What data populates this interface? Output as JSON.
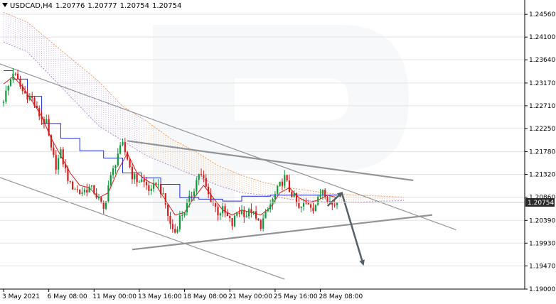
{
  "header": {
    "symbol": "USDCAD,H4",
    "open": "1.20776",
    "high": "1.20777",
    "low": "1.20754",
    "close": "1.20754"
  },
  "chart_data": {
    "type": "candlestick",
    "symbol": "USDCAD",
    "timeframe": "H4",
    "ylim": [
      1.19,
      1.2485
    ],
    "y_ticks": [
      "1.24560",
      "1.24100",
      "1.23640",
      "1.23170",
      "1.22710",
      "1.22250",
      "1.21780",
      "1.21320",
      "1.20860",
      "1.20390",
      "1.19930",
      "1.19470",
      "1.19000"
    ],
    "x_ticks": [
      {
        "bar": 0,
        "label": "3 May 2021"
      },
      {
        "bar": 19,
        "label": "6 May 08:00"
      },
      {
        "bar": 38,
        "label": "11 May 00:00"
      },
      {
        "bar": 57,
        "label": "13 May 16:00"
      },
      {
        "bar": 76,
        "label": "18 May 08:00"
      },
      {
        "bar": 95,
        "label": "21 May 00:00"
      },
      {
        "bar": 114,
        "label": "25 May 16:00"
      },
      {
        "bar": 133,
        "label": "28 May 08:00"
      }
    ],
    "last_price": "1.20754",
    "candle_count": 141,
    "colors": {
      "bull": "#0e9a3a",
      "bear": "#d41b1b",
      "kijun": "#1f2fe0",
      "tenkan": "#e01818",
      "cloud_a": "#f0a060",
      "cloud_b": "#b08ad8",
      "trend": "#909498",
      "arrow": "#56606a",
      "grid": "#e4e4e4",
      "price_label": "#2a2a2a"
    },
    "anchor_closes": [
      [
        0,
        1.2285
      ],
      [
        2,
        1.231
      ],
      [
        4,
        1.234
      ],
      [
        6,
        1.232
      ],
      [
        8,
        1.23
      ],
      [
        10,
        1.2292
      ],
      [
        12,
        1.2285
      ],
      [
        14,
        1.226
      ],
      [
        16,
        1.2245
      ],
      [
        18,
        1.2235
      ],
      [
        20,
        1.218
      ],
      [
        22,
        1.215
      ],
      [
        24,
        1.2175
      ],
      [
        26,
        1.214
      ],
      [
        28,
        1.211
      ],
      [
        30,
        1.2105
      ],
      [
        32,
        1.2095
      ],
      [
        34,
        1.21
      ],
      [
        36,
        1.2105
      ],
      [
        38,
        1.2098
      ],
      [
        40,
        1.208
      ],
      [
        42,
        1.206
      ],
      [
        44,
        1.211
      ],
      [
        46,
        1.214
      ],
      [
        48,
        1.2175
      ],
      [
        50,
        1.219
      ],
      [
        52,
        1.2165
      ],
      [
        54,
        1.213
      ],
      [
        56,
        1.212
      ],
      [
        58,
        1.212
      ],
      [
        60,
        1.211
      ],
      [
        62,
        1.2095
      ],
      [
        64,
        1.2118
      ],
      [
        66,
        1.21
      ],
      [
        68,
        1.207
      ],
      [
        70,
        1.203
      ],
      [
        72,
        1.2015
      ],
      [
        74,
        1.2045
      ],
      [
        76,
        1.206
      ],
      [
        78,
        1.208
      ],
      [
        80,
        1.2105
      ],
      [
        82,
        1.2135
      ],
      [
        84,
        1.212
      ],
      [
        86,
        1.209
      ],
      [
        88,
        1.2075
      ],
      [
        90,
        1.2055
      ],
      [
        92,
        1.206
      ],
      [
        94,
        1.2045
      ],
      [
        96,
        1.203
      ],
      [
        98,
        1.2055
      ],
      [
        100,
        1.2058
      ],
      [
        102,
        1.205
      ],
      [
        104,
        1.206
      ],
      [
        106,
        1.204
      ],
      [
        108,
        1.203
      ],
      [
        110,
        1.205
      ],
      [
        112,
        1.207
      ],
      [
        114,
        1.209
      ],
      [
        116,
        1.211
      ],
      [
        118,
        1.2125
      ],
      [
        120,
        1.21
      ],
      [
        122,
        1.2085
      ],
      [
        124,
        1.206
      ],
      [
        126,
        1.207
      ],
      [
        128,
        1.2075
      ],
      [
        130,
        1.2065
      ],
      [
        132,
        1.208
      ],
      [
        134,
        1.2105
      ],
      [
        136,
        1.2085
      ],
      [
        138,
        1.207
      ],
      [
        140,
        1.20754
      ]
    ],
    "kijun": [
      [
        0,
        1.2342
      ],
      [
        4,
        1.2342
      ],
      [
        4,
        1.2325
      ],
      [
        10,
        1.2325
      ],
      [
        10,
        1.229
      ],
      [
        16,
        1.229
      ],
      [
        16,
        1.2235
      ],
      [
        24,
        1.2235
      ],
      [
        24,
        1.2205
      ],
      [
        32,
        1.2205
      ],
      [
        32,
        1.218
      ],
      [
        42,
        1.218
      ],
      [
        42,
        1.2165
      ],
      [
        50,
        1.2165
      ],
      [
        50,
        1.2135
      ],
      [
        58,
        1.2135
      ],
      [
        58,
        1.2125
      ],
      [
        66,
        1.2125
      ],
      [
        66,
        1.2112
      ],
      [
        74,
        1.2112
      ],
      [
        74,
        1.2085
      ],
      [
        82,
        1.2085
      ],
      [
        82,
        1.2082
      ],
      [
        92,
        1.2082
      ],
      [
        92,
        1.2078
      ],
      [
        100,
        1.2078
      ],
      [
        100,
        1.2088
      ],
      [
        112,
        1.2088
      ],
      [
        112,
        1.209
      ],
      [
        140,
        1.209
      ]
    ],
    "tenkan": [
      [
        0,
        1.2315
      ],
      [
        4,
        1.233
      ],
      [
        8,
        1.231
      ],
      [
        12,
        1.228
      ],
      [
        16,
        1.225
      ],
      [
        20,
        1.2205
      ],
      [
        24,
        1.217
      ],
      [
        28,
        1.2135
      ],
      [
        32,
        1.211
      ],
      [
        36,
        1.2105
      ],
      [
        40,
        1.2085
      ],
      [
        44,
        1.2095
      ],
      [
        48,
        1.214
      ],
      [
        52,
        1.2175
      ],
      [
        56,
        1.2135
      ],
      [
        60,
        1.212
      ],
      [
        64,
        1.211
      ],
      [
        68,
        1.208
      ],
      [
        72,
        1.205
      ],
      [
        76,
        1.2055
      ],
      [
        80,
        1.2085
      ],
      [
        84,
        1.211
      ],
      [
        88,
        1.2085
      ],
      [
        92,
        1.206
      ],
      [
        96,
        1.205
      ],
      [
        100,
        1.206
      ],
      [
        104,
        1.2055
      ],
      [
        108,
        1.205
      ],
      [
        112,
        1.2065
      ],
      [
        116,
        1.2095
      ],
      [
        120,
        1.2105
      ],
      [
        124,
        1.2085
      ],
      [
        128,
        1.2075
      ],
      [
        132,
        1.208
      ],
      [
        136,
        1.209
      ],
      [
        140,
        1.2085
      ]
    ],
    "cloud": [
      [
        0,
        1.246,
        1.24
      ],
      [
        10,
        1.244,
        1.238
      ],
      [
        20,
        1.24,
        1.233
      ],
      [
        30,
        1.236,
        1.228
      ],
      [
        40,
        1.232,
        1.223
      ],
      [
        50,
        1.227,
        1.22
      ],
      [
        60,
        1.224,
        1.217
      ],
      [
        70,
        1.2205,
        1.215
      ],
      [
        80,
        1.218,
        1.213
      ],
      [
        90,
        1.215,
        1.211
      ],
      [
        100,
        1.213,
        1.2095
      ],
      [
        110,
        1.2115,
        1.209
      ],
      [
        120,
        1.2105,
        1.2082
      ],
      [
        130,
        1.2098,
        1.2078
      ],
      [
        140,
        1.2092,
        1.2075
      ],
      [
        150,
        1.209,
        1.2076
      ],
      [
        160,
        1.2088,
        1.2078
      ],
      [
        168,
        1.2086,
        1.2079
      ]
    ],
    "trendlines": [
      {
        "name": "channel-upper",
        "from": [
          -4,
          1.236
        ],
        "to": [
          190,
          1.202
        ]
      },
      {
        "name": "channel-lower",
        "from": [
          -4,
          1.213
        ],
        "to": [
          118,
          1.192
        ]
      },
      {
        "name": "triangle-upper",
        "from": [
          52,
          1.22
        ],
        "to": [
          172,
          1.212
        ]
      },
      {
        "name": "triangle-lower",
        "from": [
          54,
          1.198
        ],
        "to": [
          180,
          1.205
        ]
      }
    ],
    "forecast": {
      "from": [
        136,
        1.2068
      ],
      "peak": [
        142,
        1.2095
      ],
      "to": [
        151,
        1.195
      ]
    }
  }
}
